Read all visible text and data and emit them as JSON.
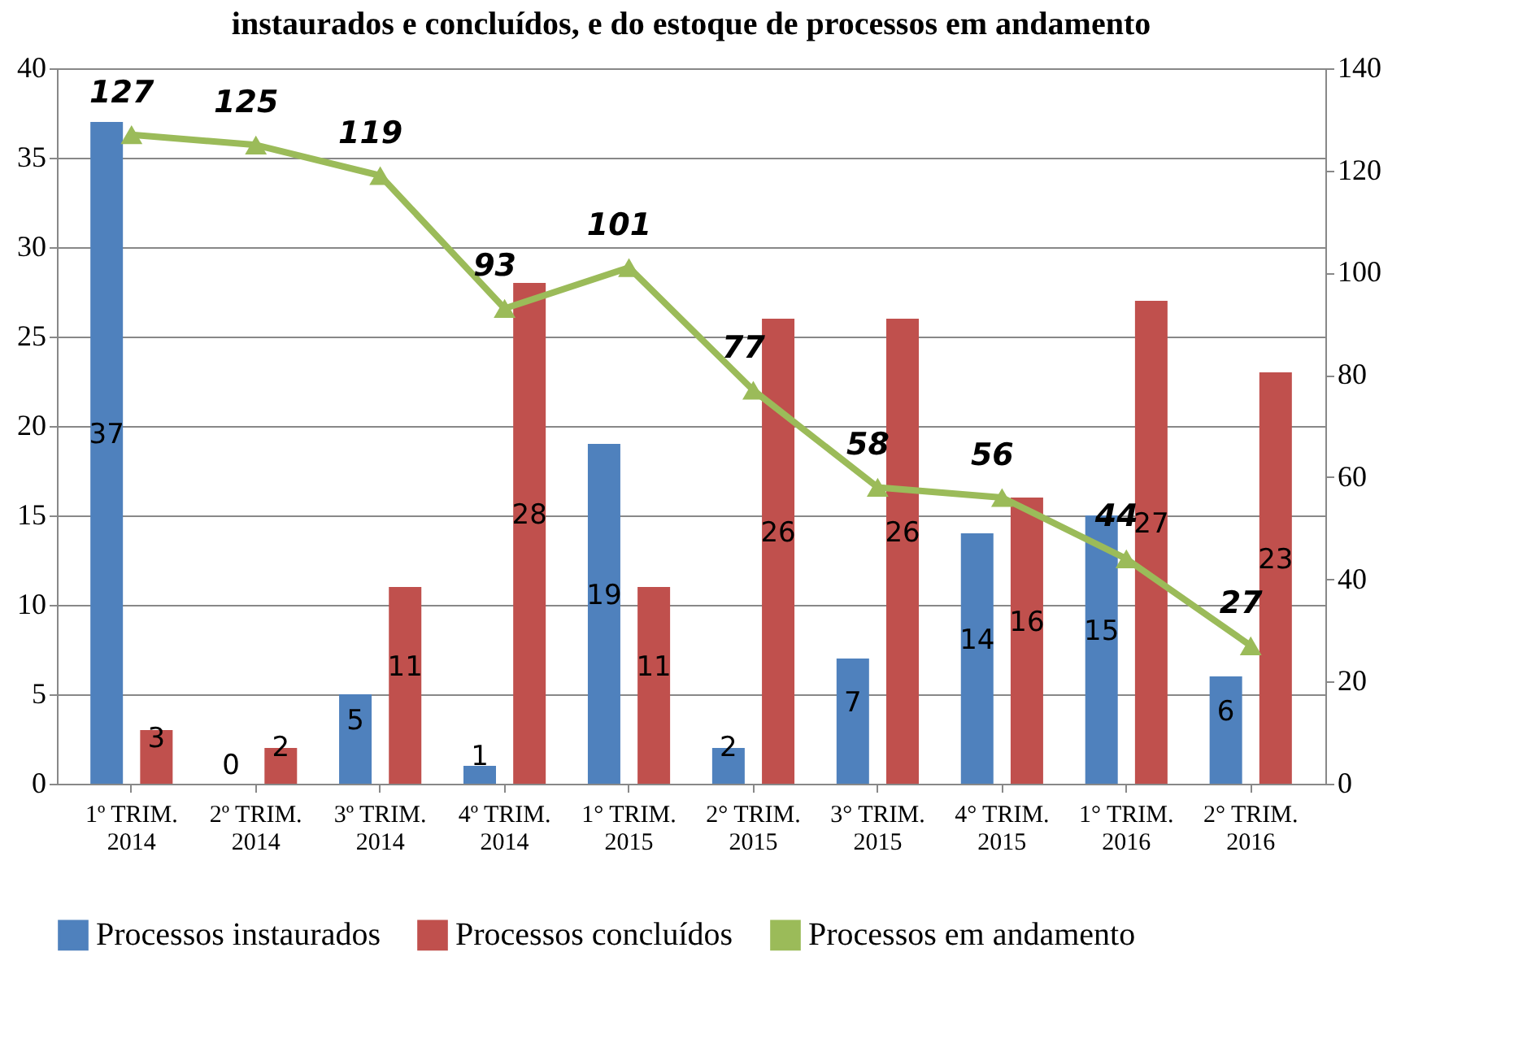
{
  "chart_data": {
    "type": "bar",
    "title": "instaurados e concluídos, e do estoque de processos em andamento",
    "categories": [
      "1º TRIM. 2014",
      "2º TRIM. 2014",
      "3º TRIM. 2014",
      "4º TRIM. 2014",
      "1° TRIM. 2015",
      "2° TRIM. 2015",
      "3° TRIM. 2015",
      "4° TRIM. 2015",
      "1° TRIM. 2016",
      "2° TRIM. 2016"
    ],
    "series": [
      {
        "name": "Processos instaurados",
        "color": "#4f81bd",
        "values": [
          37,
          0,
          5,
          1,
          19,
          2,
          7,
          14,
          15,
          6
        ]
      },
      {
        "name": "Processos concluídos",
        "color": "#c0504d",
        "values": [
          3,
          2,
          11,
          28,
          11,
          26,
          26,
          16,
          27,
          23
        ]
      },
      {
        "name": "Processos em andamento",
        "type": "line",
        "axis": "y2",
        "color": "#9bbb59",
        "marker": "triangle",
        "values": [
          127,
          125,
          119,
          93,
          101,
          77,
          58,
          56,
          44,
          27
        ]
      }
    ],
    "ylim": [
      0,
      40
    ],
    "yticks": [
      0,
      5,
      10,
      15,
      20,
      25,
      30,
      35,
      40
    ],
    "y2lim": [
      0,
      140
    ],
    "y2ticks": [
      0,
      20,
      40,
      60,
      80,
      100,
      120,
      140
    ],
    "grid": "y",
    "legend": "bottom",
    "data_labels": true
  }
}
